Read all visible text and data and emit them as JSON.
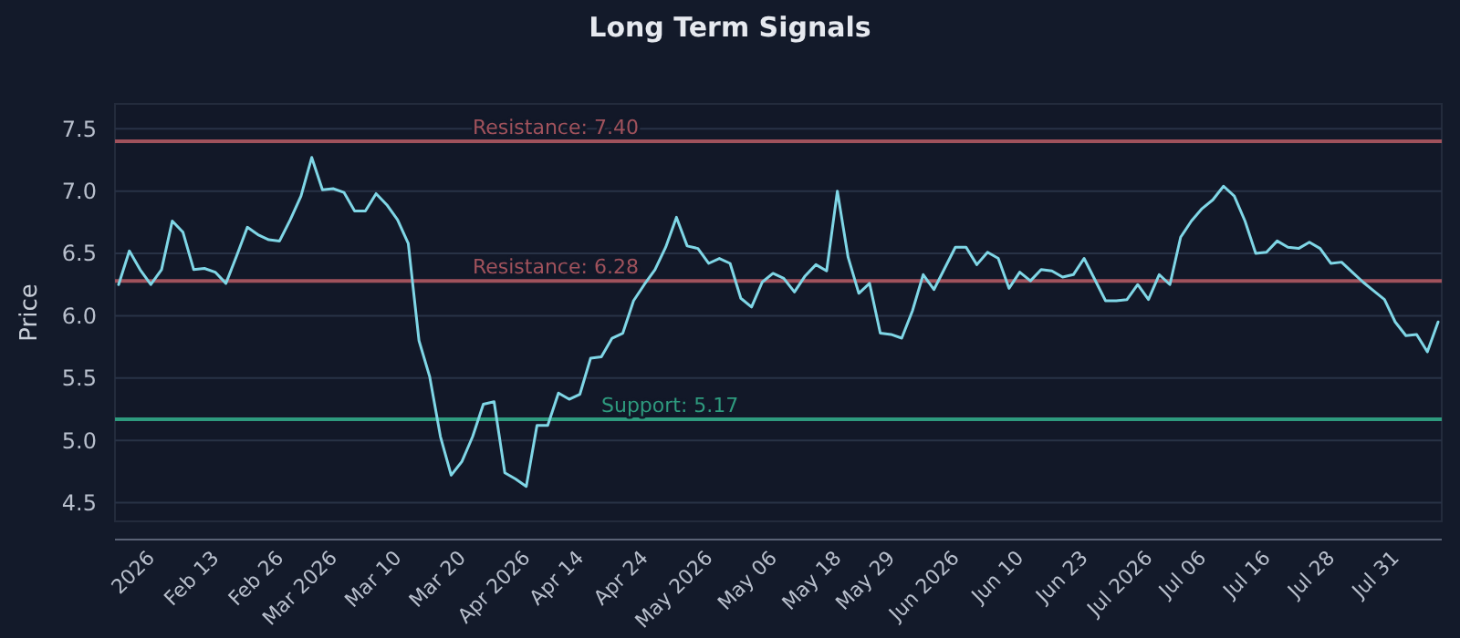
{
  "chart_data": {
    "type": "line",
    "title": "Long Term Signals",
    "ylabel": "Price",
    "categories": [
      null,
      null,
      null,
      "2026",
      null,
      null,
      null,
      null,
      null,
      "Feb 13",
      null,
      null,
      null,
      null,
      null,
      "Feb 26",
      null,
      null,
      null,
      null,
      "Mar 2026",
      null,
      null,
      null,
      null,
      null,
      "Mar 10",
      null,
      null,
      null,
      null,
      null,
      "Mar 20",
      null,
      null,
      null,
      null,
      null,
      "Apr 2026",
      null,
      null,
      null,
      null,
      "Apr 14",
      null,
      null,
      null,
      null,
      null,
      "Apr 24",
      null,
      null,
      null,
      null,
      null,
      "May 2026",
      null,
      null,
      null,
      null,
      null,
      "May 06",
      null,
      null,
      null,
      null,
      null,
      "May 18",
      null,
      null,
      null,
      null,
      "May 29",
      null,
      null,
      null,
      null,
      null,
      "Jun 2026",
      null,
      null,
      null,
      null,
      null,
      "Jun 10",
      null,
      null,
      null,
      null,
      null,
      "Jun 23",
      null,
      null,
      null,
      null,
      null,
      "Jul 2026",
      null,
      null,
      null,
      null,
      "Jul 06",
      null,
      null,
      null,
      null,
      null,
      "Jul 16",
      null,
      null,
      null,
      null,
      null,
      "Jul 28",
      null,
      null,
      null,
      null,
      null,
      "Jul 31",
      null,
      null,
      null,
      null
    ],
    "series": [
      {
        "color": "#7fd6e6",
        "values": [
          6.25,
          6.52,
          6.37,
          6.25,
          6.37,
          6.76,
          6.67,
          6.37,
          6.38,
          6.35,
          6.26,
          6.48,
          6.71,
          6.65,
          6.61,
          6.6,
          6.77,
          6.96,
          7.27,
          7.01,
          7.02,
          6.99,
          6.84,
          6.84,
          6.98,
          6.89,
          6.77,
          6.58,
          5.8,
          5.51,
          5.03,
          4.72,
          4.83,
          5.03,
          5.29,
          5.31,
          4.74,
          4.69,
          4.63,
          5.12,
          5.12,
          5.38,
          5.33,
          5.37,
          5.66,
          5.67,
          5.82,
          5.86,
          6.12,
          6.25,
          6.37,
          6.55,
          6.79,
          6.56,
          6.54,
          6.42,
          6.46,
          6.42,
          6.14,
          6.07,
          6.27,
          6.34,
          6.3,
          6.19,
          6.32,
          6.41,
          6.36,
          7.0,
          6.47,
          6.18,
          6.26,
          5.86,
          5.85,
          5.82,
          6.04,
          6.33,
          6.21,
          6.38,
          6.55,
          6.55,
          6.41,
          6.51,
          6.46,
          6.22,
          6.35,
          6.28,
          6.37,
          6.36,
          6.31,
          6.33,
          6.46,
          6.29,
          6.12,
          6.12,
          6.13,
          6.25,
          6.13,
          6.33,
          6.25,
          6.63,
          6.76,
          6.86,
          6.93,
          7.04,
          6.96,
          6.76,
          6.5,
          6.51,
          6.6,
          6.55,
          6.54,
          6.59,
          6.54,
          6.42,
          6.43,
          6.35,
          6.27,
          6.2,
          6.13,
          5.95,
          5.84,
          5.85,
          5.71,
          5.95
        ]
      }
    ],
    "ylim": [
      4.35,
      7.7
    ],
    "yticks": [
      {
        "value": 4.5,
        "label": "4.5"
      },
      {
        "value": 5,
        "label": "5.0"
      },
      {
        "value": 5.5,
        "label": "5.5"
      },
      {
        "value": 6,
        "label": "6.0"
      },
      {
        "value": 6.5,
        "label": "6.5"
      },
      {
        "value": 7,
        "label": "7.0"
      },
      {
        "value": 7.5,
        "label": "7.5"
      }
    ],
    "grid": "y",
    "line_style": "solid",
    "marker": "none",
    "ref_lines": [
      {
        "axis": "y",
        "value": 7.4,
        "label": "Resistance: 7.40",
        "color": "#a0525c"
      },
      {
        "axis": "y",
        "value": 6.28,
        "label": "Resistance: 6.28",
        "color": "#a0525c"
      },
      {
        "axis": "y",
        "value": 5.17,
        "label": "Support: 5.17",
        "color": "#2e9a7e"
      }
    ]
  }
}
